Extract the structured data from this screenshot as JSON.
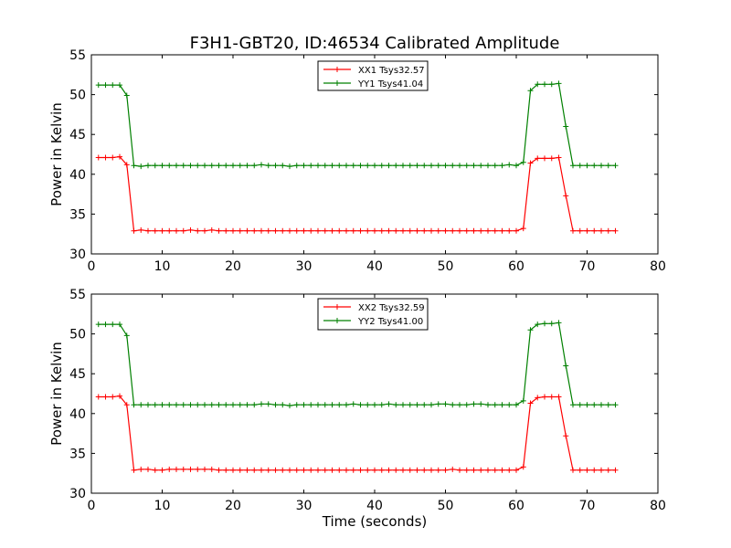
{
  "chart_data": [
    {
      "type": "line",
      "title": "F3H1-GBT20, ID:46534 Calibrated Amplitude",
      "xlabel": "",
      "ylabel": "Power in Kelvin",
      "xlim": [
        0,
        80
      ],
      "ylim": [
        30,
        55
      ],
      "xticks": [
        0,
        10,
        20,
        30,
        40,
        50,
        60,
        70,
        80
      ],
      "yticks": [
        30,
        35,
        40,
        45,
        50,
        55
      ],
      "legend": "top-center",
      "grid": false,
      "x": [
        1,
        2,
        3,
        4,
        5,
        6,
        7,
        8,
        9,
        10,
        11,
        12,
        13,
        14,
        15,
        16,
        17,
        18,
        19,
        20,
        21,
        22,
        23,
        24,
        25,
        26,
        27,
        28,
        29,
        30,
        31,
        32,
        33,
        34,
        35,
        36,
        37,
        38,
        39,
        40,
        41,
        42,
        43,
        44,
        45,
        46,
        47,
        48,
        49,
        50,
        51,
        52,
        53,
        54,
        55,
        56,
        57,
        58,
        59,
        60,
        61,
        62,
        63,
        64,
        65,
        66,
        67,
        68,
        69,
        70,
        71,
        72,
        73,
        74
      ],
      "series": [
        {
          "name": "XX1 Tsys32.57",
          "color": "#ff0000",
          "values": [
            42.1,
            42.1,
            42.1,
            42.2,
            41.2,
            32.9,
            33.0,
            32.9,
            32.9,
            32.9,
            32.9,
            32.9,
            32.9,
            33.0,
            32.9,
            32.9,
            33.0,
            32.9,
            32.9,
            32.9,
            32.9,
            32.9,
            32.9,
            32.9,
            32.9,
            32.9,
            32.9,
            32.9,
            32.9,
            32.9,
            32.9,
            32.9,
            32.9,
            32.9,
            32.9,
            32.9,
            32.9,
            32.9,
            32.9,
            32.9,
            32.9,
            32.9,
            32.9,
            32.9,
            32.9,
            32.9,
            32.9,
            32.9,
            32.9,
            32.9,
            32.9,
            32.9,
            32.9,
            32.9,
            32.9,
            32.9,
            32.9,
            32.9,
            32.9,
            32.9,
            33.2,
            41.4,
            42.0,
            42.0,
            42.0,
            42.1,
            37.3,
            32.9,
            32.9,
            32.9,
            32.9,
            32.9,
            32.9,
            32.9
          ]
        },
        {
          "name": "YY1 Tsys41.04",
          "color": "#008000",
          "values": [
            51.2,
            51.2,
            51.2,
            51.2,
            49.9,
            41.1,
            41.0,
            41.1,
            41.1,
            41.1,
            41.1,
            41.1,
            41.1,
            41.1,
            41.1,
            41.1,
            41.1,
            41.1,
            41.1,
            41.1,
            41.1,
            41.1,
            41.1,
            41.2,
            41.1,
            41.1,
            41.1,
            41.0,
            41.1,
            41.1,
            41.1,
            41.1,
            41.1,
            41.1,
            41.1,
            41.1,
            41.1,
            41.1,
            41.1,
            41.1,
            41.1,
            41.1,
            41.1,
            41.1,
            41.1,
            41.1,
            41.1,
            41.1,
            41.1,
            41.1,
            41.1,
            41.1,
            41.1,
            41.1,
            41.1,
            41.1,
            41.1,
            41.1,
            41.2,
            41.1,
            41.5,
            50.5,
            51.3,
            51.3,
            51.3,
            51.4,
            46.0,
            41.1,
            41.1,
            41.1,
            41.1,
            41.1,
            41.1,
            41.1
          ]
        }
      ]
    },
    {
      "type": "line",
      "title": "",
      "xlabel": "Time (seconds)",
      "ylabel": "Power in Kelvin",
      "xlim": [
        0,
        80
      ],
      "ylim": [
        30,
        55
      ],
      "xticks": [
        0,
        10,
        20,
        30,
        40,
        50,
        60,
        70,
        80
      ],
      "yticks": [
        30,
        35,
        40,
        45,
        50,
        55
      ],
      "legend": "top-center",
      "grid": false,
      "x": [
        1,
        2,
        3,
        4,
        5,
        6,
        7,
        8,
        9,
        10,
        11,
        12,
        13,
        14,
        15,
        16,
        17,
        18,
        19,
        20,
        21,
        22,
        23,
        24,
        25,
        26,
        27,
        28,
        29,
        30,
        31,
        32,
        33,
        34,
        35,
        36,
        37,
        38,
        39,
        40,
        41,
        42,
        43,
        44,
        45,
        46,
        47,
        48,
        49,
        50,
        51,
        52,
        53,
        54,
        55,
        56,
        57,
        58,
        59,
        60,
        61,
        62,
        63,
        64,
        65,
        66,
        67,
        68,
        69,
        70,
        71,
        72,
        73,
        74
      ],
      "series": [
        {
          "name": "XX2 Tsys32.59",
          "color": "#ff0000",
          "values": [
            42.1,
            42.1,
            42.1,
            42.2,
            41.1,
            32.9,
            33.0,
            33.0,
            32.9,
            32.9,
            33.0,
            33.0,
            33.0,
            33.0,
            33.0,
            33.0,
            33.0,
            32.9,
            32.9,
            32.9,
            32.9,
            32.9,
            32.9,
            32.9,
            32.9,
            32.9,
            32.9,
            32.9,
            32.9,
            32.9,
            32.9,
            32.9,
            32.9,
            32.9,
            32.9,
            32.9,
            32.9,
            32.9,
            32.9,
            32.9,
            32.9,
            32.9,
            32.9,
            32.9,
            32.9,
            32.9,
            32.9,
            32.9,
            32.9,
            32.9,
            33.0,
            32.9,
            32.9,
            32.9,
            32.9,
            32.9,
            32.9,
            32.9,
            32.9,
            32.9,
            33.3,
            41.3,
            42.0,
            42.1,
            42.1,
            42.1,
            37.2,
            32.9,
            32.9,
            32.9,
            32.9,
            32.9,
            32.9,
            32.9
          ]
        },
        {
          "name": "YY2 Tsys41.00",
          "color": "#008000",
          "values": [
            51.2,
            51.2,
            51.2,
            51.2,
            49.8,
            41.1,
            41.1,
            41.1,
            41.1,
            41.1,
            41.1,
            41.1,
            41.1,
            41.1,
            41.1,
            41.1,
            41.1,
            41.1,
            41.1,
            41.1,
            41.1,
            41.1,
            41.1,
            41.2,
            41.2,
            41.1,
            41.1,
            41.0,
            41.1,
            41.1,
            41.1,
            41.1,
            41.1,
            41.1,
            41.1,
            41.1,
            41.2,
            41.1,
            41.1,
            41.1,
            41.1,
            41.2,
            41.1,
            41.1,
            41.1,
            41.1,
            41.1,
            41.1,
            41.2,
            41.2,
            41.1,
            41.1,
            41.1,
            41.2,
            41.2,
            41.1,
            41.1,
            41.1,
            41.1,
            41.1,
            41.6,
            50.5,
            51.2,
            51.3,
            51.3,
            51.4,
            46.0,
            41.1,
            41.1,
            41.1,
            41.1,
            41.1,
            41.1,
            41.1
          ]
        }
      ]
    }
  ]
}
